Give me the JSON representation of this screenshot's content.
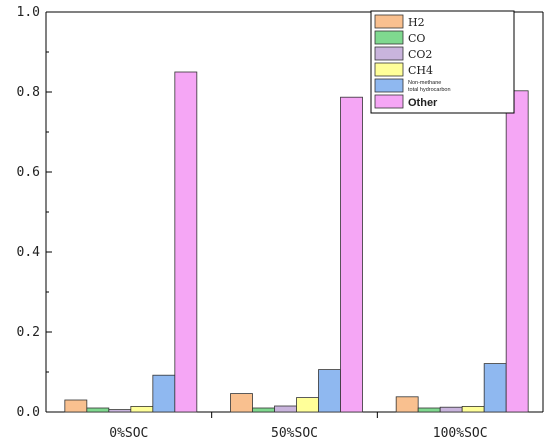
{
  "chart_data": {
    "type": "bar",
    "title": "",
    "xlabel": "",
    "ylabel": "",
    "ylim": [
      0,
      1.0
    ],
    "yticks": [
      "0.0",
      "0.2",
      "0.4",
      "0.6",
      "0.8",
      "1.0"
    ],
    "categories": [
      "0%SOC",
      "50%SOC",
      "100%SOC"
    ],
    "grid": false,
    "legend_position": "top-right",
    "series": [
      {
        "name": "H2",
        "color": "#F9C08F",
        "values": [
          0.03,
          0.046,
          0.038
        ]
      },
      {
        "name": "CO",
        "color": "#7FD98F",
        "values": [
          0.01,
          0.01,
          0.01
        ]
      },
      {
        "name": "CO2",
        "color": "#C9B4DD",
        "values": [
          0.006,
          0.015,
          0.012
        ]
      },
      {
        "name": "CH4",
        "color": "#FFFF99",
        "values": [
          0.014,
          0.036,
          0.014
        ]
      },
      {
        "name": "Non-methane total hydrocarbon",
        "name_lines": [
          "Non-methane",
          "total hydrocarbon"
        ],
        "color": "#8FB8F0",
        "values": [
          0.092,
          0.106,
          0.121
        ]
      },
      {
        "name": "Other",
        "color": "#F5A6F5",
        "values": [
          0.85,
          0.787,
          0.803
        ]
      }
    ]
  }
}
